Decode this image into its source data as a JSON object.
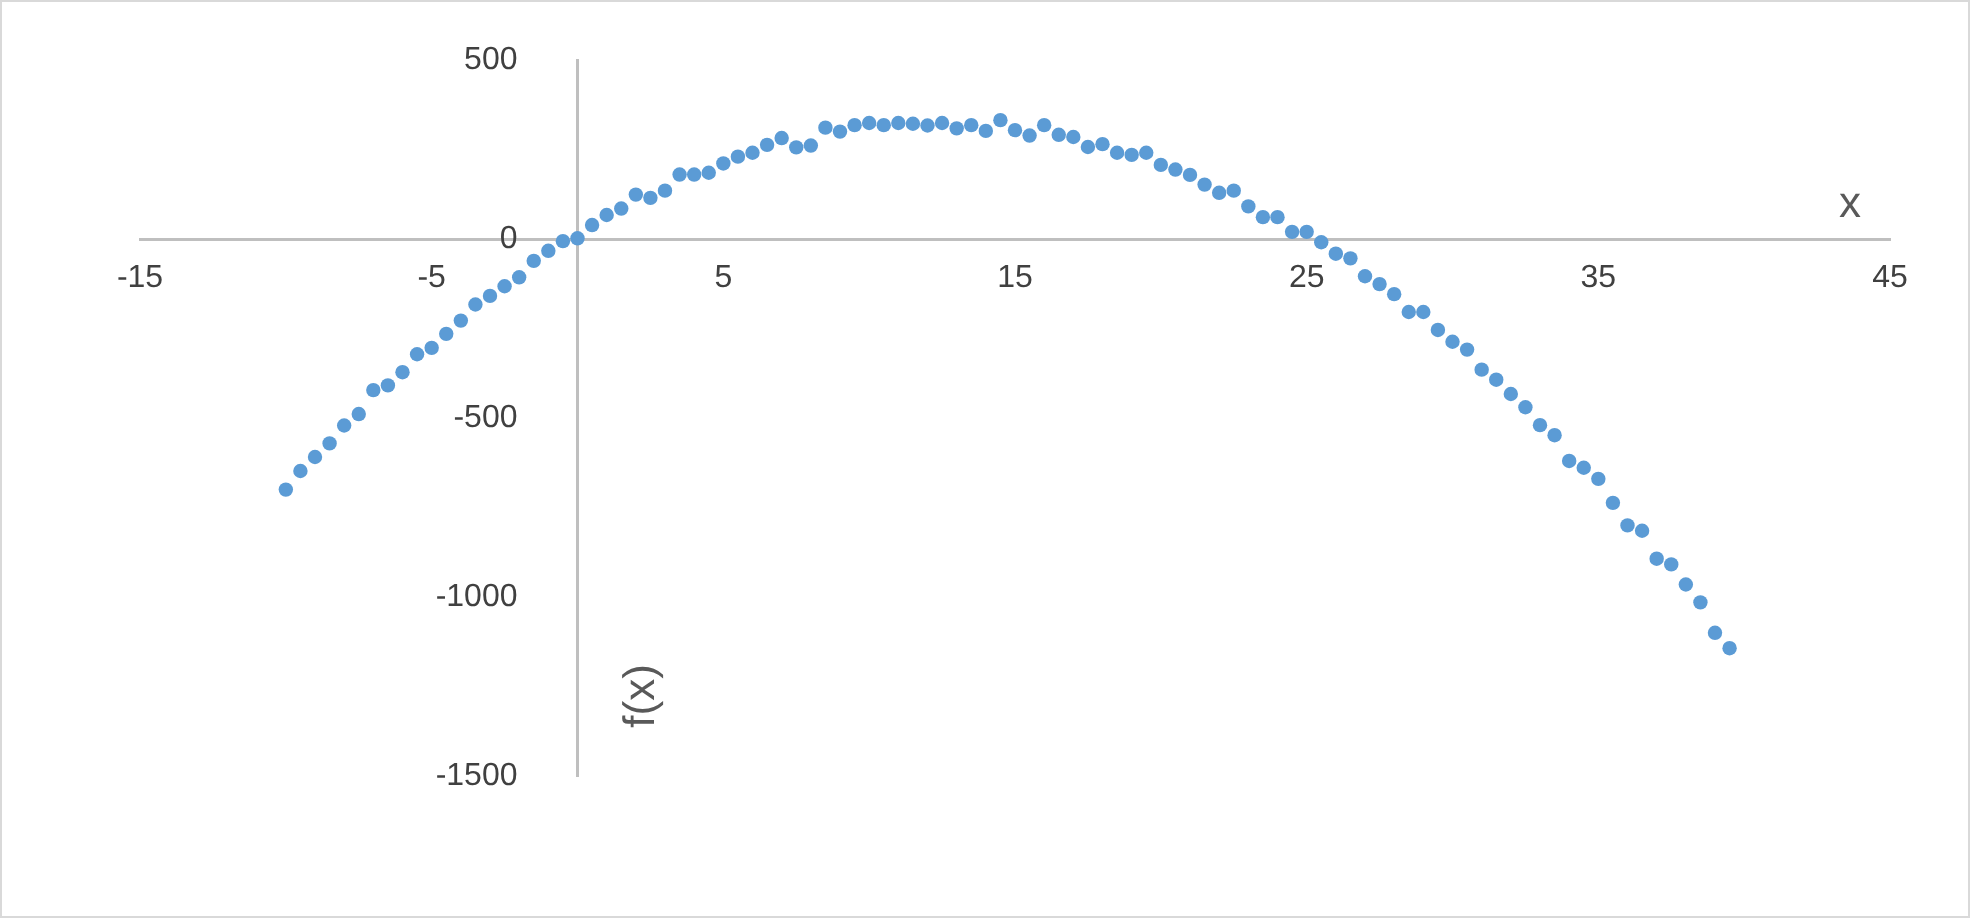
{
  "chart_data": {
    "type": "scatter",
    "xlabel": "x",
    "ylabel": "f(x)",
    "xlim": [
      -15,
      45
    ],
    "xticks": [
      -15,
      -5,
      5,
      15,
      25,
      35,
      45
    ],
    "ylim": [
      -1500,
      500
    ],
    "yticks": [
      -1500,
      -1000,
      -500,
      0,
      500
    ],
    "grid": false,
    "legend": false,
    "marker": "circle",
    "series": [
      {
        "color": "#5b9bd5",
        "x": [
          -10,
          -9.5,
          -9,
          -8.5,
          -8,
          -7.5,
          -7,
          -6.5,
          -6,
          -5.5,
          -5,
          -4.5,
          -4,
          -3.5,
          -3,
          -2.5,
          -2,
          -1.5,
          -1,
          -0.5,
          0,
          0.5,
          1,
          1.5,
          2,
          2.5,
          3,
          3.5,
          4,
          4.5,
          5,
          5.5,
          6,
          6.5,
          7,
          7.5,
          8,
          8.5,
          9,
          9.5,
          10,
          10.5,
          11,
          11.5,
          12,
          12.5,
          13,
          13.5,
          14,
          14.5,
          15,
          15.5,
          16,
          16.5,
          17,
          17.5,
          18,
          18.5,
          19,
          19.5,
          20,
          20.5,
          21,
          21.5,
          22,
          22.5,
          23,
          23.5,
          24,
          24.5,
          25,
          25.5,
          26,
          26.5,
          27,
          27.5,
          28,
          28.5,
          29,
          29.5,
          30,
          30.5,
          31,
          31.5,
          32,
          32.5,
          33,
          33.5,
          34,
          34.5,
          35,
          35.5,
          36,
          36.5,
          37,
          37.5,
          38,
          38.5,
          39,
          39.5
        ],
        "values": [
          -700,
          -648,
          -609,
          -571,
          -521,
          -489,
          -422,
          -409,
          -372,
          -322,
          -304,
          -265,
          -228,
          -183,
          -159,
          -132,
          -107,
          -61,
          -33,
          -6,
          2,
          39,
          67,
          85,
          124,
          115,
          135,
          180,
          180,
          185,
          211,
          230,
          241,
          263,
          282,
          256,
          261,
          311,
          300,
          318,
          324,
          318,
          324,
          322,
          317,
          324,
          309,
          318,
          302,
          332,
          304,
          289,
          318,
          291,
          285,
          257,
          265,
          241,
          235,
          241,
          207,
          194,
          179,
          152,
          129,
          135,
          91,
          61,
          61,
          20,
          20,
          -9,
          -41,
          -54,
          -104,
          -126,
          -154,
          -204,
          -204,
          -254,
          -287,
          -309,
          -365,
          -393,
          -433,
          -470,
          -520,
          -548,
          -620,
          -639,
          -670,
          -737,
          -800,
          -815,
          -893,
          -909,
          -965,
          -1015,
          -1100,
          -1143
        ]
      }
    ]
  }
}
